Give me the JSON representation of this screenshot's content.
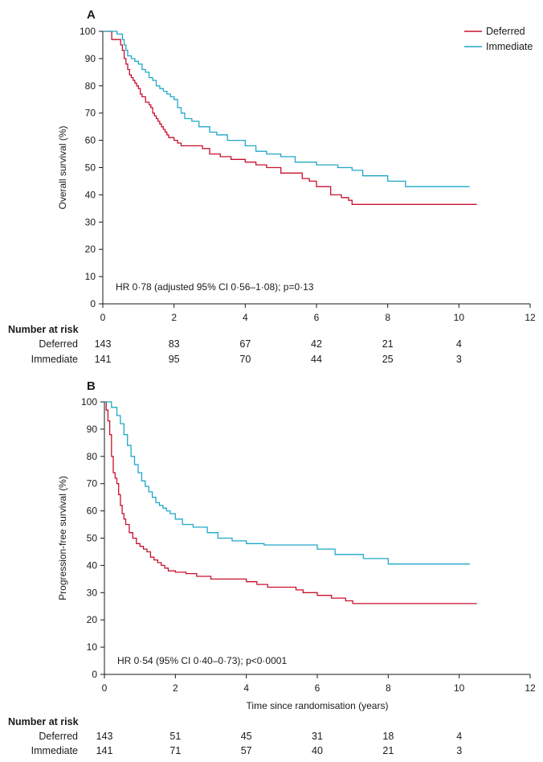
{
  "colors": {
    "deferred": "#c8102e",
    "immediate": "#1fa8c9"
  },
  "legend": {
    "items": [
      "Deferred",
      "Immediate"
    ],
    "placement": "top-right"
  },
  "chart_data": [
    {
      "type": "line",
      "panel": "A",
      "ylabel": "Overall survival (%)",
      "xlabel": "",
      "xlim": [
        0,
        12
      ],
      "ylim": [
        0,
        100
      ],
      "xticks": [
        0,
        2,
        4,
        6,
        8,
        10,
        12
      ],
      "yticks": [
        0,
        10,
        20,
        30,
        40,
        50,
        60,
        70,
        80,
        90,
        100
      ],
      "annotation": "HR 0·78 (adjusted 95% CI 0·56–1·08); p=0·13",
      "series": [
        {
          "name": "Deferred",
          "color": "#c8102e",
          "x": [
            0,
            0.25,
            0.5,
            0.55,
            0.6,
            0.65,
            0.7,
            0.75,
            0.8,
            0.85,
            0.9,
            0.95,
            1.0,
            1.05,
            1.1,
            1.2,
            1.3,
            1.35,
            1.4,
            1.45,
            1.5,
            1.55,
            1.6,
            1.65,
            1.7,
            1.75,
            1.8,
            1.85,
            1.9,
            2.0,
            2.1,
            2.2,
            2.4,
            2.8,
            3.0,
            3.3,
            3.6,
            4.0,
            4.3,
            4.6,
            5.0,
            5.6,
            5.8,
            6.0,
            6.2,
            6.4,
            6.7,
            6.9,
            7.0,
            10.5
          ],
          "y": [
            100,
            97,
            95,
            93,
            90,
            88,
            86,
            84,
            83,
            82,
            81,
            80,
            79,
            77,
            76,
            74,
            73,
            72,
            70,
            69,
            68,
            67,
            66,
            65,
            64,
            63,
            62,
            61,
            61,
            60,
            59,
            58,
            58,
            57,
            55,
            54,
            53,
            52,
            51,
            50,
            48,
            46,
            45,
            43,
            43,
            40,
            39,
            38,
            36.5,
            36.5
          ]
        },
        {
          "name": "Immediate",
          "color": "#1fa8c9",
          "x": [
            0,
            0.4,
            0.55,
            0.6,
            0.65,
            0.7,
            0.8,
            0.9,
            1.0,
            1.1,
            1.2,
            1.3,
            1.4,
            1.5,
            1.6,
            1.7,
            1.8,
            1.9,
            2.0,
            2.1,
            2.2,
            2.3,
            2.5,
            2.7,
            3.0,
            3.2,
            3.5,
            4.0,
            4.3,
            4.6,
            5.0,
            5.4,
            6.0,
            6.6,
            7.0,
            7.3,
            8.0,
            8.5,
            10.3
          ],
          "y": [
            100,
            99,
            97,
            95,
            93,
            91,
            90,
            89,
            88,
            86,
            85,
            83,
            82,
            80,
            79,
            78,
            77,
            76,
            75,
            72,
            70,
            68,
            67,
            65,
            63,
            62,
            60,
            58,
            56,
            55,
            54,
            52,
            51,
            50,
            49,
            47,
            45,
            43,
            43
          ]
        }
      ],
      "risk_table": {
        "title": "Number at risk",
        "times": [
          0,
          2,
          4,
          6,
          8,
          10
        ],
        "rows": [
          {
            "name": "Deferred",
            "values": [
              "143",
              "83",
              "67",
              "42",
              "21",
              "4"
            ]
          },
          {
            "name": "Immediate",
            "values": [
              "141",
              "95",
              "70",
              "44",
              "25",
              "3"
            ]
          }
        ]
      }
    },
    {
      "type": "line",
      "panel": "B",
      "ylabel": "Progression-free survival (%)",
      "xlabel": "Time since randomisation (years)",
      "xlim": [
        0,
        12
      ],
      "ylim": [
        0,
        100
      ],
      "xticks": [
        0,
        2,
        4,
        6,
        8,
        10,
        12
      ],
      "yticks": [
        0,
        10,
        20,
        30,
        40,
        50,
        60,
        70,
        80,
        90,
        100
      ],
      "annotation": "HR 0·54 (95% CI 0·40–0·73); p<0·0001",
      "series": [
        {
          "name": "Deferred",
          "color": "#c8102e",
          "x": [
            0,
            0.05,
            0.1,
            0.15,
            0.2,
            0.25,
            0.3,
            0.35,
            0.4,
            0.45,
            0.5,
            0.55,
            0.6,
            0.7,
            0.8,
            0.9,
            1.0,
            1.1,
            1.2,
            1.3,
            1.4,
            1.5,
            1.6,
            1.7,
            1.8,
            2.0,
            2.3,
            2.6,
            3.0,
            3.5,
            4.0,
            4.3,
            4.6,
            5.0,
            5.4,
            5.6,
            6.0,
            6.4,
            6.8,
            7.0,
            10.5
          ],
          "y": [
            100,
            97,
            93,
            88,
            80,
            74,
            72,
            70,
            66,
            62,
            59,
            57,
            55,
            52,
            50,
            48,
            47,
            46,
            45,
            43,
            42,
            41,
            40,
            39,
            38,
            37.5,
            37,
            36,
            35,
            35,
            34,
            33,
            32,
            32,
            31,
            30,
            29,
            28,
            27,
            26,
            26
          ]
        },
        {
          "name": "Immediate",
          "color": "#1fa8c9",
          "x": [
            0,
            0.2,
            0.35,
            0.45,
            0.55,
            0.65,
            0.75,
            0.85,
            0.95,
            1.05,
            1.15,
            1.25,
            1.35,
            1.45,
            1.55,
            1.65,
            1.75,
            1.85,
            2.0,
            2.2,
            2.5,
            2.9,
            3.2,
            3.6,
            4.0,
            4.5,
            5.0,
            5.5,
            6.0,
            6.5,
            7.0,
            7.3,
            7.8,
            8.0,
            10.3
          ],
          "y": [
            100,
            98,
            95,
            92,
            88,
            84,
            80,
            77,
            74,
            71,
            69,
            67,
            65,
            63,
            62,
            61,
            60,
            59,
            57,
            55,
            54,
            52,
            50,
            49,
            48,
            47.5,
            47.5,
            47.5,
            46,
            44,
            44,
            42.5,
            42.5,
            40.5,
            40.5
          ]
        }
      ],
      "risk_table": {
        "title": "Number at risk",
        "times": [
          0,
          2,
          4,
          6,
          8,
          10
        ],
        "rows": [
          {
            "name": "Deferred",
            "values": [
              "143",
              "51",
              "45",
              "31",
              "18",
              "4"
            ]
          },
          {
            "name": "Immediate",
            "values": [
              "141",
              "71",
              "57",
              "40",
              "21",
              "3"
            ]
          }
        ]
      }
    }
  ]
}
